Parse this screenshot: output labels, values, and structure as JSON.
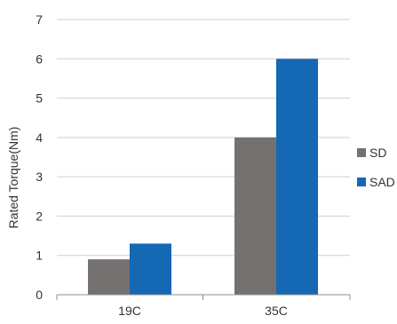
{
  "chart_data": {
    "type": "bar",
    "title": "",
    "xlabel": "",
    "ylabel": "Rated Torque(Nm)",
    "categories": [
      "19C",
      "35C"
    ],
    "series": [
      {
        "name": "SD",
        "values": [
          0.9,
          4.0
        ],
        "color": "#767171"
      },
      {
        "name": "SAD",
        "values": [
          1.3,
          6.0
        ],
        "color": "#1468B4"
      }
    ],
    "ylim": [
      0,
      7
    ],
    "yticks": [
      0,
      1,
      2,
      3,
      4,
      5,
      6,
      7
    ],
    "grid": true,
    "legend_position": "right"
  }
}
